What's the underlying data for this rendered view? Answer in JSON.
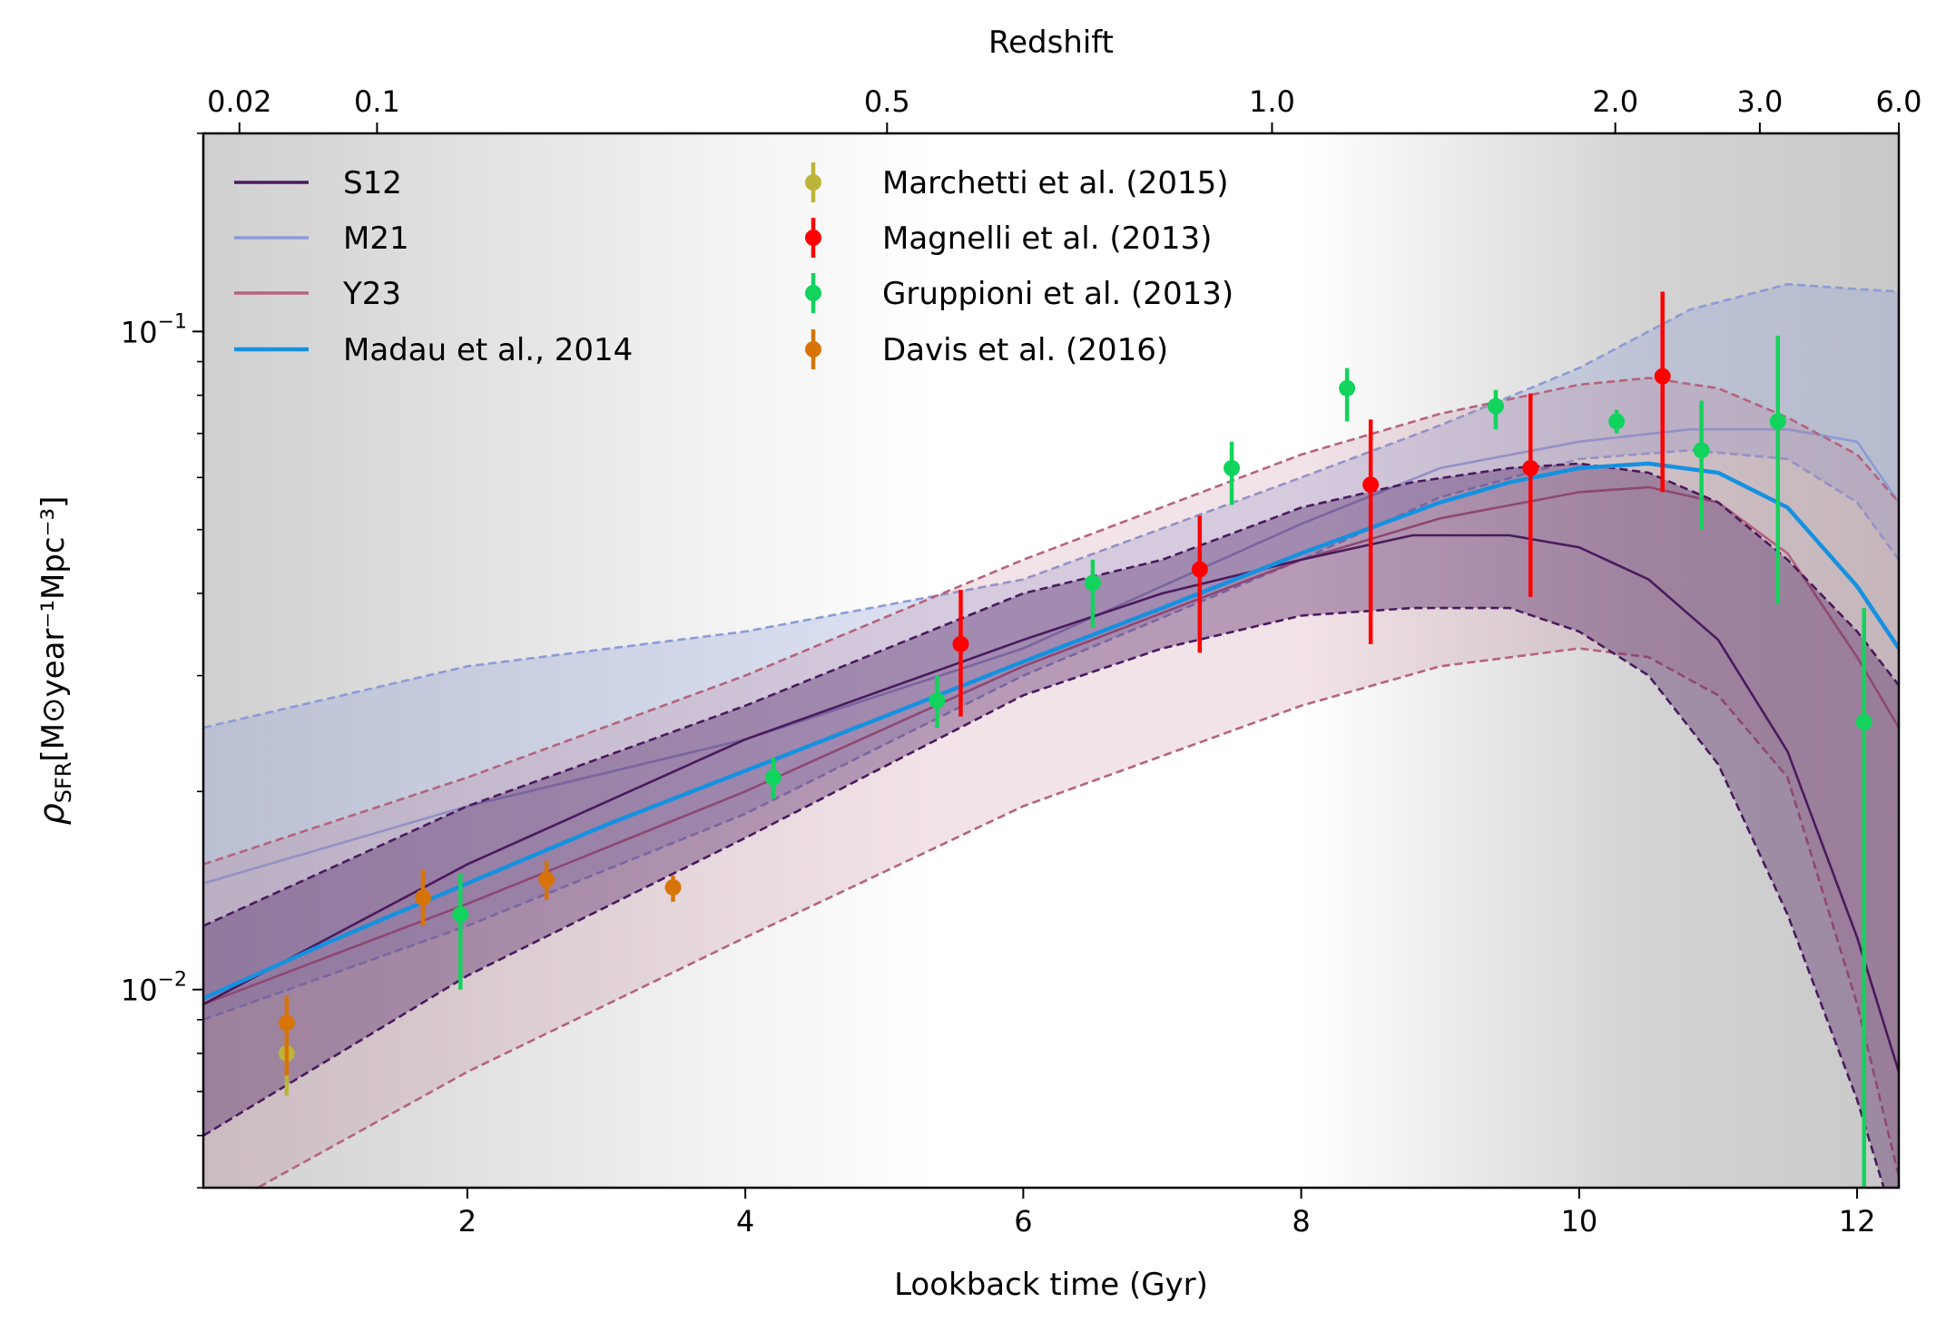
{
  "chart_data": {
    "type": "line",
    "xlabel": "Lookback time (Gyr)",
    "ylabel_main": "ρ",
    "ylabel_sub": "SFR",
    "ylabel_unit": "[M⊙year⁻¹Mpc⁻³]",
    "top_xlabel": "Redshift",
    "xlim": [
      0.1,
      12.3
    ],
    "ylim": [
      0.005,
      0.2
    ],
    "yscale": "log",
    "xticks": [
      "2",
      "4",
      "6",
      "8",
      "10",
      "12"
    ],
    "yticks": [
      {
        "base": "10",
        "exp": "−1",
        "value": 0.1
      },
      {
        "base": "10",
        "exp": "−2",
        "value": 0.01
      }
    ],
    "top_ticks": [
      {
        "label": "0.02",
        "t": 0.36
      },
      {
        "label": "0.1",
        "t": 1.35
      },
      {
        "label": "0.5",
        "t": 5.02
      },
      {
        "label": "1.0",
        "t": 7.79
      },
      {
        "label": "2.0",
        "t": 10.26
      },
      {
        "label": "3.0",
        "t": 11.3
      },
      {
        "label": "6.0",
        "t": 12.3
      }
    ],
    "background_shading": "grey at low and high lookback time, white near 4.5-8.5 Gyr",
    "colors": {
      "S12": "#4a1a5e",
      "M21": "#8c9bd6",
      "Y23": "#b5637e",
      "Madau": "#1591e0",
      "Marchetti": "#bdb43a",
      "Magnelli": "#ff0000",
      "Gruppioni": "#12d35c",
      "Davis": "#d77408"
    },
    "legend": {
      "lines": [
        {
          "name": "S12",
          "key": "S12"
        },
        {
          "name": "M21",
          "key": "M21"
        },
        {
          "name": "Y23",
          "key": "Y23"
        },
        {
          "name": "Madau et al., 2014",
          "key": "Madau"
        }
      ],
      "points": [
        {
          "name": "Marchetti et al. (2015)",
          "key": "Marchetti"
        },
        {
          "name": "Magnelli et al. (2013)",
          "key": "Magnelli"
        },
        {
          "name": "Gruppioni et al. (2013)",
          "key": "Gruppioni"
        },
        {
          "name": "Davis et al. (2016)",
          "key": "Davis"
        }
      ]
    },
    "models": [
      {
        "name": "M21",
        "x": [
          0.1,
          2,
          4,
          6,
          8,
          9,
          10,
          10.8,
          11.5,
          12,
          12.3
        ],
        "median": [
          0.0145,
          0.019,
          0.024,
          0.033,
          0.051,
          0.062,
          0.068,
          0.071,
          0.071,
          0.068,
          0.055
        ],
        "upper": [
          0.025,
          0.031,
          0.035,
          0.042,
          0.06,
          0.072,
          0.088,
          0.108,
          0.118,
          0.116,
          0.115
        ],
        "lower": [
          0.009,
          0.0125,
          0.0185,
          0.03,
          0.045,
          0.056,
          0.064,
          0.066,
          0.064,
          0.055,
          0.045
        ]
      },
      {
        "name": "Y23",
        "x": [
          0.1,
          2,
          4,
          6,
          8,
          9,
          10,
          10.5,
          11,
          11.5,
          12,
          12.3
        ],
        "median": [
          0.0095,
          0.0135,
          0.02,
          0.031,
          0.045,
          0.052,
          0.057,
          0.058,
          0.055,
          0.046,
          0.032,
          0.025
        ],
        "upper": [
          0.0155,
          0.021,
          0.03,
          0.045,
          0.065,
          0.075,
          0.083,
          0.085,
          0.082,
          0.074,
          0.065,
          0.055
        ],
        "lower": [
          0.0045,
          0.0075,
          0.012,
          0.019,
          0.027,
          0.031,
          0.033,
          0.032,
          0.028,
          0.021,
          0.0095,
          0.0052
        ]
      },
      {
        "name": "S12",
        "x": [
          0.1,
          2,
          4,
          6,
          7,
          8,
          8.8,
          9.5,
          10,
          10.5,
          11,
          11.5,
          12,
          12.3
        ],
        "median": [
          0.0095,
          0.0155,
          0.024,
          0.034,
          0.04,
          0.045,
          0.049,
          0.049,
          0.047,
          0.042,
          0.034,
          0.023,
          0.012,
          0.0075
        ],
        "upper": [
          0.0125,
          0.019,
          0.027,
          0.04,
          0.045,
          0.054,
          0.059,
          0.062,
          0.063,
          0.061,
          0.055,
          0.045,
          0.035,
          0.029
        ],
        "lower": [
          0.006,
          0.0105,
          0.017,
          0.028,
          0.033,
          0.037,
          0.038,
          0.038,
          0.035,
          0.03,
          0.022,
          0.013,
          0.0068,
          0.0042
        ]
      },
      {
        "name": "Madau",
        "x": [
          0.1,
          1,
          2,
          3,
          4,
          5,
          6,
          7,
          8,
          9,
          9.5,
          10,
          10.5,
          11,
          11.5,
          12,
          12.3
        ],
        "median": [
          0.0097,
          0.0118,
          0.0145,
          0.0178,
          0.0215,
          0.026,
          0.0315,
          0.038,
          0.046,
          0.055,
          0.059,
          0.062,
          0.063,
          0.061,
          0.054,
          0.041,
          0.033
        ]
      }
    ],
    "observations": [
      {
        "name": "Marchetti et al. (2015)",
        "key": "Marchetti",
        "points": [
          {
            "x": 0.7,
            "y": 0.008,
            "lo": 0.0069,
            "hi": 0.0089
          }
        ]
      },
      {
        "name": "Magnelli et al. (2013)",
        "key": "Magnelli",
        "points": [
          {
            "x": 5.55,
            "y": 0.0335,
            "lo": 0.026,
            "hi": 0.0405
          },
          {
            "x": 7.27,
            "y": 0.0435,
            "lo": 0.0325,
            "hi": 0.0525
          },
          {
            "x": 8.5,
            "y": 0.0585,
            "lo": 0.0335,
            "hi": 0.0735
          },
          {
            "x": 9.65,
            "y": 0.062,
            "lo": 0.0395,
            "hi": 0.0805
          },
          {
            "x": 10.6,
            "y": 0.0855,
            "lo": 0.057,
            "hi": 0.115
          }
        ]
      },
      {
        "name": "Gruppioni et al. (2013)",
        "key": "Gruppioni",
        "points": [
          {
            "x": 1.95,
            "y": 0.013,
            "lo": 0.01,
            "hi": 0.015
          },
          {
            "x": 4.2,
            "y": 0.021,
            "lo": 0.0195,
            "hi": 0.0225
          },
          {
            "x": 5.38,
            "y": 0.0275,
            "lo": 0.025,
            "hi": 0.03
          },
          {
            "x": 6.5,
            "y": 0.0415,
            "lo": 0.0355,
            "hi": 0.045
          },
          {
            "x": 7.5,
            "y": 0.062,
            "lo": 0.0545,
            "hi": 0.068
          },
          {
            "x": 8.33,
            "y": 0.082,
            "lo": 0.073,
            "hi": 0.088
          },
          {
            "x": 9.4,
            "y": 0.077,
            "lo": 0.071,
            "hi": 0.0815
          },
          {
            "x": 10.27,
            "y": 0.073,
            "lo": 0.07,
            "hi": 0.076
          },
          {
            "x": 10.88,
            "y": 0.066,
            "lo": 0.05,
            "hi": 0.0785
          },
          {
            "x": 11.43,
            "y": 0.073,
            "lo": 0.0385,
            "hi": 0.0985
          },
          {
            "x": 12.05,
            "y": 0.0255,
            "lo": 0.0045,
            "hi": 0.038
          }
        ]
      },
      {
        "name": "Davis et al. (2016)",
        "key": "Davis",
        "points": [
          {
            "x": 0.7,
            "y": 0.0089,
            "lo": 0.0074,
            "hi": 0.0098
          },
          {
            "x": 1.68,
            "y": 0.0138,
            "lo": 0.0125,
            "hi": 0.0152
          },
          {
            "x": 2.57,
            "y": 0.0147,
            "lo": 0.0137,
            "hi": 0.0157
          },
          {
            "x": 3.48,
            "y": 0.0143,
            "lo": 0.0136,
            "hi": 0.0149
          }
        ]
      }
    ]
  }
}
